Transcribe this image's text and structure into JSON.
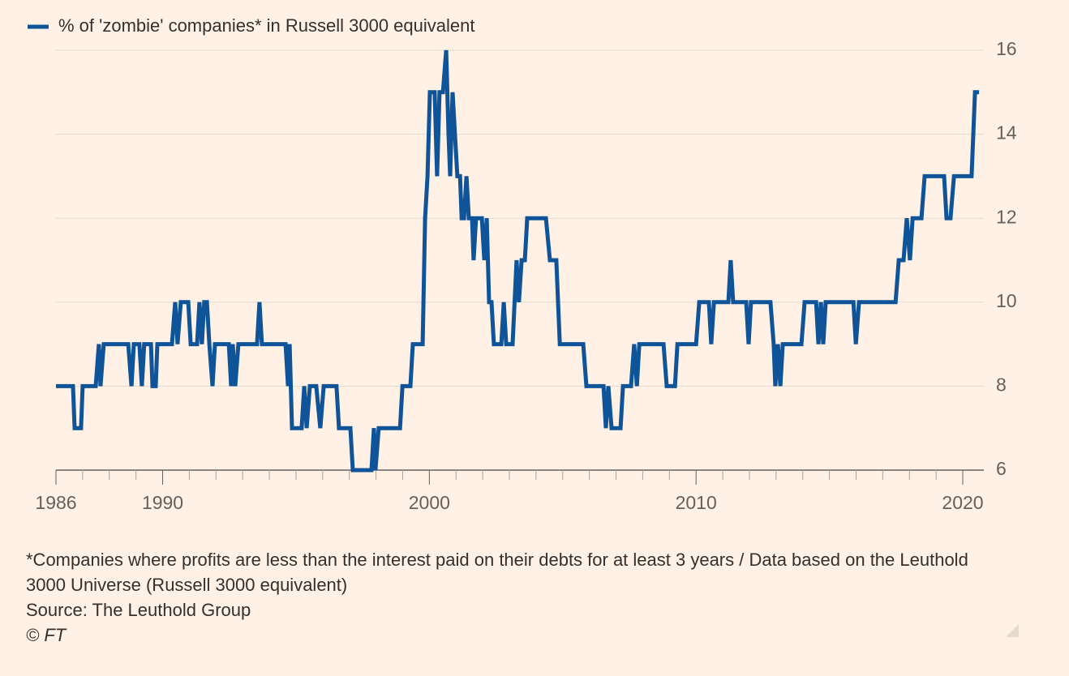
{
  "chart_data": {
    "type": "line",
    "legend": "top-left",
    "grid": true,
    "xlim": [
      1986,
      2020.79
    ],
    "ylim": [
      6,
      16
    ],
    "yticks": [
      6,
      8,
      10,
      12,
      14,
      16
    ],
    "xticks": [
      1986,
      1990,
      2000,
      2010,
      2020
    ],
    "xminorticks": [
      1987,
      1988,
      1989,
      1991,
      1992,
      1993,
      1994,
      1995,
      1996,
      1997,
      1998,
      1999,
      2001,
      2002,
      2003,
      2004,
      2005,
      2006,
      2007,
      2008,
      2009,
      2011,
      2012,
      2013,
      2014,
      2015,
      2016,
      2017,
      2018,
      2019
    ],
    "x": [
      1986.0,
      1986.64,
      1986.7,
      1986.94,
      1987.0,
      1987.49,
      1987.61,
      1987.67,
      1987.79,
      1988.71,
      1988.83,
      1988.92,
      1989.13,
      1989.22,
      1989.31,
      1989.56,
      1989.62,
      1989.74,
      1989.8,
      1990.35,
      1990.47,
      1990.56,
      1990.68,
      1990.96,
      1991.05,
      1991.29,
      1991.38,
      1991.47,
      1991.56,
      1991.66,
      1991.75,
      1991.87,
      1991.96,
      1992.48,
      1992.57,
      1992.63,
      1992.72,
      1992.84,
      1993.54,
      1993.63,
      1993.72,
      1994.61,
      1994.7,
      1994.76,
      1994.85,
      1995.21,
      1995.31,
      1995.4,
      1995.52,
      1995.76,
      1995.91,
      1996.04,
      1996.52,
      1996.61,
      1997.04,
      1997.13,
      1997.83,
      1997.92,
      1997.98,
      1998.1,
      1998.9,
      1998.99,
      1999.29,
      1999.38,
      1999.75,
      1999.84,
      1999.93,
      2000.02,
      2000.2,
      2000.29,
      2000.38,
      2000.51,
      2000.63,
      2000.72,
      2000.78,
      2000.87,
      2000.96,
      2001.05,
      2001.15,
      2001.21,
      2001.3,
      2001.39,
      2001.48,
      2001.6,
      2001.66,
      2001.75,
      2001.97,
      2002.06,
      2002.15,
      2002.24,
      2002.33,
      2002.42,
      2002.7,
      2002.79,
      2002.88,
      2003.12,
      2003.27,
      2003.36,
      2003.46,
      2003.58,
      2003.67,
      2004.37,
      2004.52,
      2004.76,
      2004.89,
      2005.77,
      2005.89,
      2006.53,
      2006.62,
      2006.71,
      2006.83,
      2007.17,
      2007.26,
      2007.56,
      2007.68,
      2007.78,
      2007.87,
      2008.78,
      2008.9,
      2009.21,
      2009.3,
      2010.0,
      2010.12,
      2010.48,
      2010.57,
      2010.67,
      2011.21,
      2011.3,
      2011.39,
      2011.88,
      2011.97,
      2012.06,
      2012.79,
      2012.91,
      2012.97,
      2013.07,
      2013.16,
      2013.25,
      2013.95,
      2014.07,
      2014.5,
      2014.59,
      2014.68,
      2014.77,
      2014.86,
      2015.9,
      2015.99,
      2016.11,
      2017.48,
      2017.6,
      2017.78,
      2017.9,
      2018.02,
      2018.12,
      2018.45,
      2018.57,
      2019.3,
      2019.39,
      2019.54,
      2019.67,
      2020.33,
      2020.46,
      2020.61
    ],
    "series": [
      {
        "name": "% of 'zombie' companies* in Russell 3000 equivalent",
        "color": "#0f5499",
        "values": [
          8,
          8,
          7,
          7,
          8,
          8,
          9,
          8,
          9,
          9,
          8,
          9,
          9,
          8,
          9,
          9,
          8,
          8,
          9,
          9,
          10,
          9,
          10,
          10,
          9,
          9,
          10,
          9,
          10,
          10,
          9,
          8,
          9,
          9,
          8,
          9,
          8,
          9,
          9,
          10,
          9,
          9,
          8,
          9,
          7,
          7,
          8,
          7,
          8,
          8,
          7,
          8,
          8,
          7,
          7,
          6,
          6,
          7,
          6,
          7,
          7,
          8,
          8,
          9,
          9,
          12,
          13,
          15,
          15,
          13,
          15,
          15,
          16,
          14,
          13,
          15,
          14,
          13,
          13,
          12,
          12,
          13,
          12,
          12,
          11,
          12,
          12,
          11,
          12,
          10,
          10,
          9,
          9,
          10,
          9,
          9,
          11,
          10,
          11,
          11,
          12,
          12,
          11,
          11,
          9,
          9,
          8,
          8,
          7,
          8,
          7,
          7,
          8,
          8,
          9,
          8,
          9,
          9,
          8,
          8,
          9,
          9,
          10,
          10,
          9,
          10,
          10,
          11,
          10,
          10,
          9,
          10,
          10,
          9,
          8,
          9,
          8,
          9,
          9,
          10,
          10,
          9,
          10,
          9,
          10,
          10,
          9,
          10,
          10,
          11,
          11,
          12,
          11,
          12,
          12,
          13,
          13,
          12,
          12,
          13,
          13,
          15,
          15
        ]
      }
    ],
    "footnote": "*Companies where profits are less than the interest paid on their debts for at least 3 years / Data based on the Leuthold 3000 Universe (Russell 3000 equivalent)",
    "source": "Source: The Leuthold Group",
    "copyright": "© FT"
  }
}
